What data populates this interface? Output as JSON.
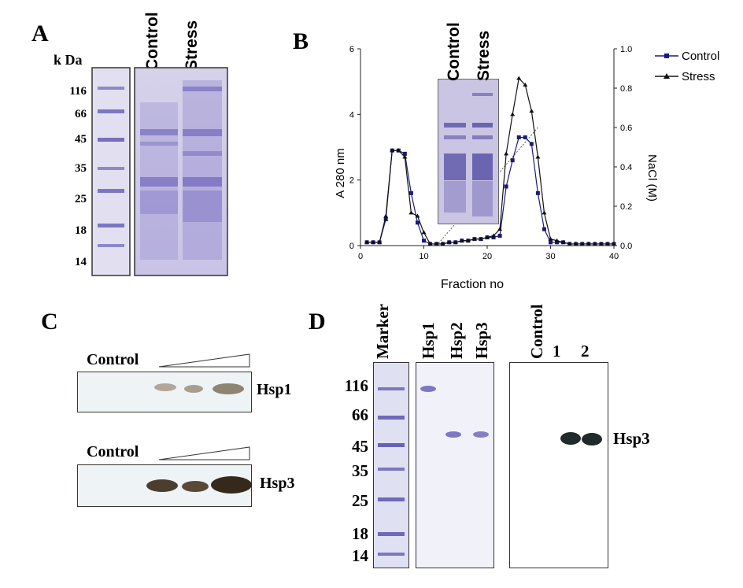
{
  "panels": {
    "a": "A",
    "b": "B",
    "c": "C",
    "d": "D"
  },
  "panel_a": {
    "kda_label": "k Da",
    "lane_labels": [
      "Control",
      "Stress"
    ],
    "mw_markers": [
      "116",
      "66",
      "45",
      "35",
      "25",
      "18",
      "14"
    ]
  },
  "panel_b": {
    "inset_labels": [
      "Control",
      "Stress"
    ],
    "legend": [
      "Control",
      "Stress"
    ]
  },
  "panel_c": {
    "control_label_1": "Control",
    "protein_1": "Hsp1",
    "control_label_2": "Control",
    "protein_2": "Hsp3"
  },
  "panel_d": {
    "marker_label": "Marker",
    "lane_labels": [
      "Hsp1",
      "Hsp2",
      "Hsp3"
    ],
    "blot_labels": [
      "Control",
      "1",
      "2"
    ],
    "mw_markers": [
      "116",
      "66",
      "45",
      "35",
      "25",
      "18",
      "14"
    ],
    "protein": "Hsp3"
  },
  "colors": {
    "control_series": "#1a1a7a",
    "stress_series": "#111111",
    "gel_stain": "#6a63b8",
    "blot_band": "#3a2a1a"
  },
  "chart_data": {
    "type": "line",
    "title": "",
    "xlabel": "Fraction no",
    "ylabel": "A 280 nm",
    "y2label": "NaCl (M)",
    "xlim": [
      0,
      40
    ],
    "ylim": [
      0,
      6
    ],
    "y2lim": [
      0.0,
      1.0
    ],
    "x_ticks": [
      0,
      10,
      20,
      30,
      40
    ],
    "y_ticks": [
      0,
      2,
      4,
      6
    ],
    "y2_ticks": [
      "0.0",
      "0.2",
      "0.4",
      "0.6",
      "0.8",
      "1.0"
    ],
    "legend_position": "top-right",
    "series": [
      {
        "name": "Control",
        "marker": "square",
        "x": [
          1,
          2,
          3,
          4,
          5,
          6,
          7,
          8,
          9,
          10,
          11,
          12,
          13,
          14,
          15,
          16,
          17,
          18,
          19,
          20,
          21,
          22,
          23,
          24,
          25,
          26,
          27,
          28,
          29,
          30,
          31,
          32,
          33,
          34,
          35,
          36,
          37,
          38,
          39,
          40
        ],
        "values": [
          0.1,
          0.1,
          0.1,
          0.8,
          2.9,
          2.9,
          2.8,
          1.6,
          0.7,
          0.15,
          0.05,
          0.05,
          0.05,
          0.1,
          0.1,
          0.15,
          0.15,
          0.2,
          0.2,
          0.25,
          0.25,
          0.3,
          1.8,
          2.6,
          3.3,
          3.3,
          3.1,
          1.6,
          0.5,
          0.1,
          0.1,
          0.1,
          0.05,
          0.05,
          0.05,
          0.05,
          0.05,
          0.05,
          0.05,
          0.05
        ]
      },
      {
        "name": "Stress",
        "marker": "triangle",
        "x": [
          1,
          2,
          3,
          4,
          5,
          6,
          7,
          8,
          9,
          10,
          11,
          12,
          13,
          14,
          15,
          16,
          17,
          18,
          19,
          20,
          21,
          22,
          23,
          24,
          25,
          26,
          27,
          28,
          29,
          30,
          31,
          32,
          33,
          34,
          35,
          36,
          37,
          38,
          39,
          40
        ],
        "values": [
          0.1,
          0.1,
          0.1,
          0.9,
          2.9,
          2.9,
          2.7,
          1.0,
          0.9,
          0.4,
          0.05,
          0.05,
          0.05,
          0.1,
          0.1,
          0.15,
          0.15,
          0.2,
          0.2,
          0.25,
          0.3,
          0.5,
          2.8,
          4.0,
          5.1,
          4.9,
          4.1,
          2.7,
          1.0,
          0.2,
          0.15,
          0.1,
          0.05,
          0.05,
          0.05,
          0.05,
          0.05,
          0.05,
          0.05,
          0.05
        ]
      },
      {
        "name": "NaCl gradient",
        "axis": "right",
        "style": "dotted",
        "x": [
          12,
          28
        ],
        "values": [
          0.0,
          0.6
        ]
      }
    ]
  }
}
